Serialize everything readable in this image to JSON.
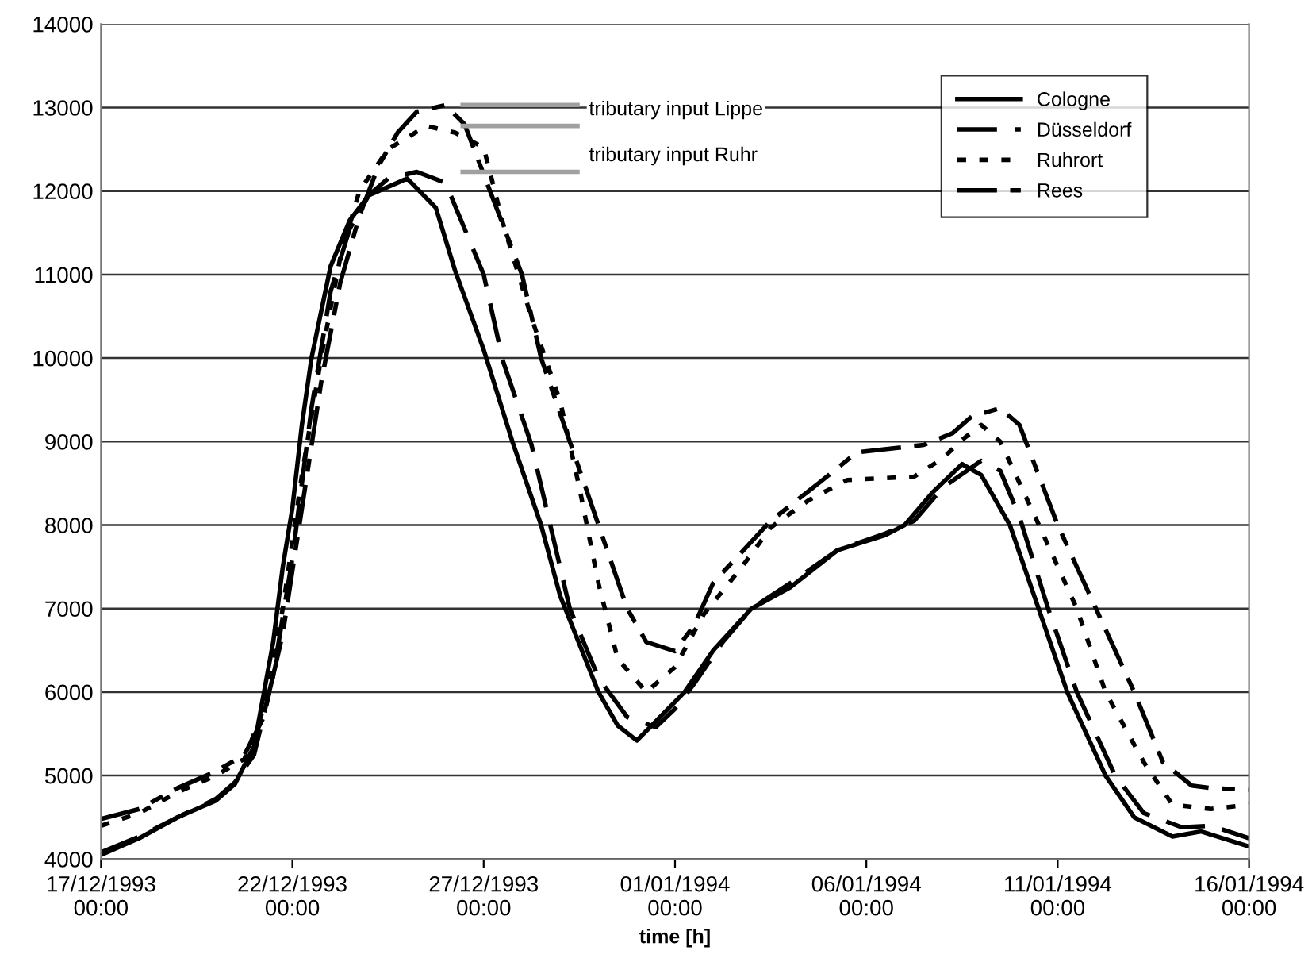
{
  "chart_data": {
    "type": "line",
    "xlabel": "time [h]",
    "xlim": [
      "1993-12-17T00:00",
      "1994-01-16T00:00"
    ],
    "xticks": [
      {
        "value": "1993-12-17T00:00",
        "label": "17/12/1993\n00:00"
      },
      {
        "value": "1993-12-22T00:00",
        "label": "22/12/1993\n00:00"
      },
      {
        "value": "1993-12-27T00:00",
        "label": "27/12/1993\n00:00"
      },
      {
        "value": "1994-01-01T00:00",
        "label": "01/01/1994\n00:00"
      },
      {
        "value": "1994-01-06T00:00",
        "label": "06/01/1994\n00:00"
      },
      {
        "value": "1994-01-11T00:00",
        "label": "11/01/1994\n00:00"
      },
      {
        "value": "1994-01-16T00:00",
        "label": "16/01/1994\n00:00"
      }
    ],
    "ylim": [
      4000,
      14000
    ],
    "yticks": [
      4000,
      5000,
      6000,
      7000,
      8000,
      9000,
      10000,
      11000,
      12000,
      13000,
      14000
    ],
    "grid": "y",
    "legend": "top right",
    "marker": "none",
    "ref_lines": [
      {
        "axis": "y",
        "value": 13030,
        "color": "#a0a0a0"
      },
      {
        "axis": "y",
        "value": 12780,
        "label": "tributary input Lippe",
        "color": "#a0a0a0"
      },
      {
        "axis": "y",
        "value": 12230,
        "label": "tributary input Ruhr",
        "color": "#a0a0a0"
      }
    ],
    "series": [
      {
        "name": "Cologne",
        "color": "#000000",
        "line_style": "solid",
        "x": [
          "1993-12-17T00:00",
          "1993-12-18T00:00",
          "1993-12-19T00:00",
          "1993-12-20T00:00",
          "1993-12-20T12:00",
          "1993-12-21T00:00",
          "1993-12-21T12:00",
          "1993-12-21T18:00",
          "1993-12-22T00:00",
          "1993-12-22T06:00",
          "1993-12-22T12:00",
          "1993-12-23T00:00",
          "1993-12-23T12:00",
          "1993-12-24T00:00",
          "1993-12-25T00:00",
          "1993-12-25T18:00",
          "1993-12-26T06:00",
          "1993-12-27T00:00",
          "1993-12-27T18:00",
          "1993-12-28T12:00",
          "1993-12-29T00:00",
          "1993-12-30T00:00",
          "1993-12-30T12:00",
          "1993-12-31T00:00",
          "1993-12-31T12:00",
          "1994-01-01T06:00",
          "1994-01-02T00:00",
          "1994-01-03T00:00",
          "1994-01-04T00:00",
          "1994-01-05T06:00",
          "1994-01-06T12:00",
          "1994-01-07T00:00",
          "1994-01-07T18:00",
          "1994-01-08T12:00",
          "1994-01-09T00:00",
          "1994-01-09T18:00",
          "1994-01-10T12:00",
          "1994-01-11T06:00",
          "1994-01-12T06:00",
          "1994-01-13T00:00",
          "1994-01-14T00:00",
          "1994-01-14T18:00",
          "1994-01-16T00:00"
        ],
        "values": [
          4050,
          4250,
          4500,
          4700,
          4900,
          5350,
          6600,
          7500,
          8200,
          9200,
          10000,
          11100,
          11650,
          11950,
          12150,
          11800,
          11050,
          10100,
          9000,
          8000,
          7150,
          6000,
          5600,
          5420,
          5650,
          6000,
          6500,
          7000,
          7250,
          7700,
          7880,
          8000,
          8400,
          8730,
          8600,
          8000,
          7000,
          6000,
          5000,
          4500,
          4270,
          4330,
          4150
        ]
      },
      {
        "name": "Düsseldorf",
        "color": "#000000",
        "line_style": "dashed",
        "x": [
          "1993-12-17T00:00",
          "1993-12-18T00:00",
          "1993-12-19T00:00",
          "1993-12-20T00:00",
          "1993-12-20T12:00",
          "1993-12-21T00:00",
          "1993-12-21T12:00",
          "1993-12-22T00:00",
          "1993-12-22T12:00",
          "1993-12-23T00:00",
          "1993-12-23T12:00",
          "1993-12-24T00:00",
          "1993-12-24T12:00",
          "1993-12-25T06:00",
          "1993-12-26T00:00",
          "1993-12-27T00:00",
          "1993-12-27T12:00",
          "1993-12-28T06:00",
          "1993-12-29T06:00",
          "1993-12-30T00:00",
          "1993-12-30T18:00",
          "1993-12-31T12:00",
          "1994-01-01T00:00",
          "1994-01-01T12:00",
          "1994-01-02T06:00",
          "1994-01-03T00:00",
          "1994-01-04T00:00",
          "1994-01-05T06:00",
          "1994-01-06T12:00",
          "1994-01-07T06:00",
          "1994-01-08T00:00",
          "1994-01-09T00:00",
          "1994-01-09T12:00",
          "1994-01-10T00:00",
          "1994-01-10T18:00",
          "1994-01-11T12:00",
          "1994-01-12T12:00",
          "1994-01-13T06:00",
          "1994-01-14T06:00",
          "1994-01-15T00:00",
          "1994-01-16T00:00"
        ],
        "values": [
          4080,
          4270,
          4500,
          4720,
          4920,
          5250,
          6200,
          7600,
          9400,
          10800,
          11550,
          11950,
          12150,
          12230,
          12100,
          11000,
          9970,
          8960,
          7000,
          6170,
          5700,
          5580,
          5800,
          6100,
          6600,
          7000,
          7300,
          7700,
          7900,
          8050,
          8450,
          8770,
          8650,
          8100,
          7000,
          6000,
          5000,
          4550,
          4380,
          4400,
          4250
        ]
      },
      {
        "name": "Ruhrort",
        "color": "#000000",
        "line_style": "dotted",
        "x": [
          "1993-12-17T00:00",
          "1993-12-18T00:00",
          "1993-12-19T00:00",
          "1993-12-20T00:00",
          "1993-12-20T18:00",
          "1993-12-21T06:00",
          "1993-12-21T18:00",
          "1993-12-22T06:00",
          "1993-12-22T18:00",
          "1993-12-23T06:00",
          "1993-12-23T18:00",
          "1993-12-24T12:00",
          "1993-12-25T12:00",
          "1993-12-26T06:00",
          "1993-12-27T00:00",
          "1993-12-27T12:00",
          "1993-12-28T06:00",
          "1993-12-29T00:00",
          "1993-12-29T12:00",
          "1993-12-30T00:00",
          "1993-12-30T12:00",
          "1993-12-31T06:00",
          "1994-01-01T00:00",
          "1994-01-01T18:00",
          "1994-01-02T18:00",
          "1994-01-03T12:00",
          "1994-01-04T12:00",
          "1994-01-05T12:00",
          "1994-01-07T06:00",
          "1994-01-08T00:00",
          "1994-01-08T12:00",
          "1994-01-09T00:00",
          "1994-01-09T12:00",
          "1994-01-10T12:00",
          "1994-01-11T12:00",
          "1994-01-12T06:00",
          "1994-01-13T06:00",
          "1994-01-14T00:00",
          "1994-01-15T00:00",
          "1994-01-16T00:00"
        ],
        "values": [
          4400,
          4550,
          4800,
          5000,
          5200,
          5800,
          7000,
          8600,
          10000,
          11200,
          12000,
          12500,
          12780,
          12700,
          12520,
          11620,
          10480,
          9480,
          8450,
          7300,
          6400,
          6000,
          6300,
          6930,
          7500,
          7970,
          8300,
          8540,
          8580,
          8800,
          9020,
          9200,
          9000,
          8010,
          7000,
          6000,
          5160,
          4650,
          4600,
          4650
        ]
      },
      {
        "name": "Rees",
        "color": "#000000",
        "line_style": "dashdot",
        "x": [
          "1993-12-17T00:00",
          "1993-12-18T00:00",
          "1993-12-19T00:00",
          "1993-12-20T00:00",
          "1993-12-20T18:00",
          "1993-12-21T06:00",
          "1993-12-21T18:00",
          "1993-12-22T06:00",
          "1993-12-22T18:00",
          "1993-12-23T06:00",
          "1993-12-23T18:00",
          "1993-12-24T06:00",
          "1993-12-24T18:00",
          "1993-12-25T06:00",
          "1993-12-26T00:00",
          "1993-12-26T12:00",
          "1993-12-27T00:00",
          "1993-12-28T00:00",
          "1993-12-28T12:00",
          "1993-12-29T06:00",
          "1993-12-30T00:00",
          "1993-12-30T18:00",
          "1993-12-31T06:00",
          "1994-01-01T00:00",
          "1994-01-01T12:00",
          "1994-01-02T00:00",
          "1994-01-03T12:00",
          "1994-01-04T18:00",
          "1994-01-05T18:00",
          "1994-01-07T12:00",
          "1994-01-08T06:00",
          "1994-01-08T18:00",
          "1994-01-09T12:00",
          "1994-01-10T00:00",
          "1994-01-11T00:00",
          "1994-01-12T00:00",
          "1994-01-13T00:00",
          "1994-01-13T18:00",
          "1994-01-14T12:00",
          "1994-01-15T00:00",
          "1994-01-16T00:00"
        ],
        "values": [
          4480,
          4600,
          4850,
          5050,
          5250,
          5700,
          6700,
          8200,
          9700,
          10900,
          11700,
          12300,
          12700,
          12950,
          13030,
          12800,
          12200,
          11000,
          10000,
          9000,
          8000,
          7000,
          6600,
          6490,
          6800,
          7310,
          8050,
          8500,
          8870,
          8960,
          9100,
          9300,
          9400,
          9200,
          8000,
          7000,
          6000,
          5160,
          4880,
          4850,
          4830
        ]
      }
    ]
  }
}
